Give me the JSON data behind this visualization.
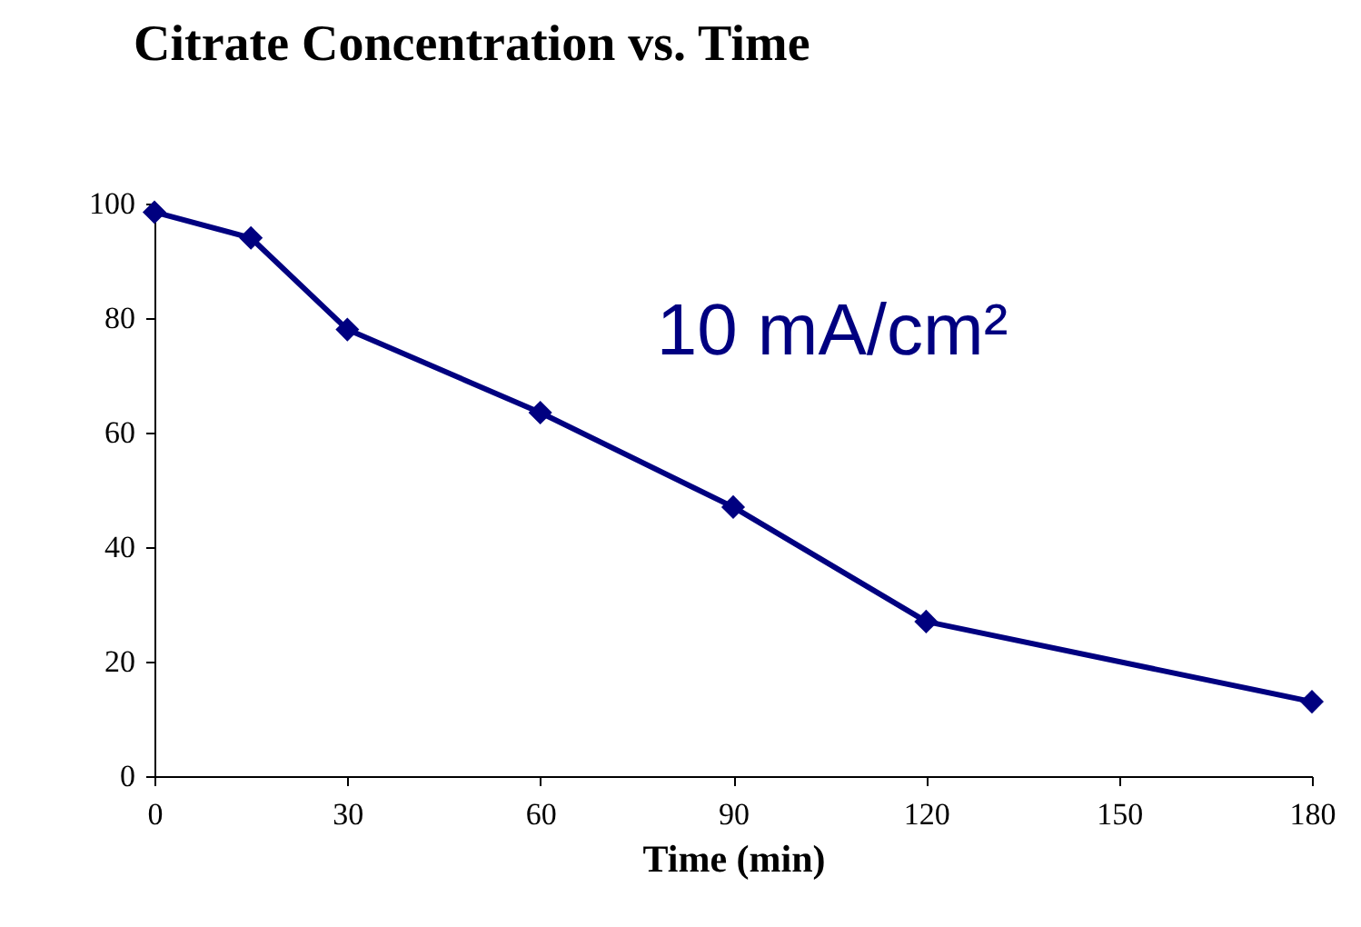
{
  "chart_data": {
    "type": "line",
    "title": "Citrate Concentration vs. Time",
    "xlabel": "Time (min)",
    "x": [
      0,
      15,
      30,
      60,
      90,
      120,
      180
    ],
    "series": [
      {
        "color": "#000080",
        "values": [
          98.5,
          94,
          78,
          63.5,
          47,
          27,
          13
        ]
      }
    ],
    "xlim": [
      0,
      180
    ],
    "xticks": [
      0,
      30,
      60,
      90,
      120,
      150,
      180
    ],
    "ylim": [
      0,
      100
    ],
    "yticks": [
      0,
      20,
      40,
      60,
      80,
      100
    ],
    "marker": "diamond",
    "line_style": "solid",
    "grid": false,
    "annotations": [
      "10 mA/cm²"
    ]
  }
}
